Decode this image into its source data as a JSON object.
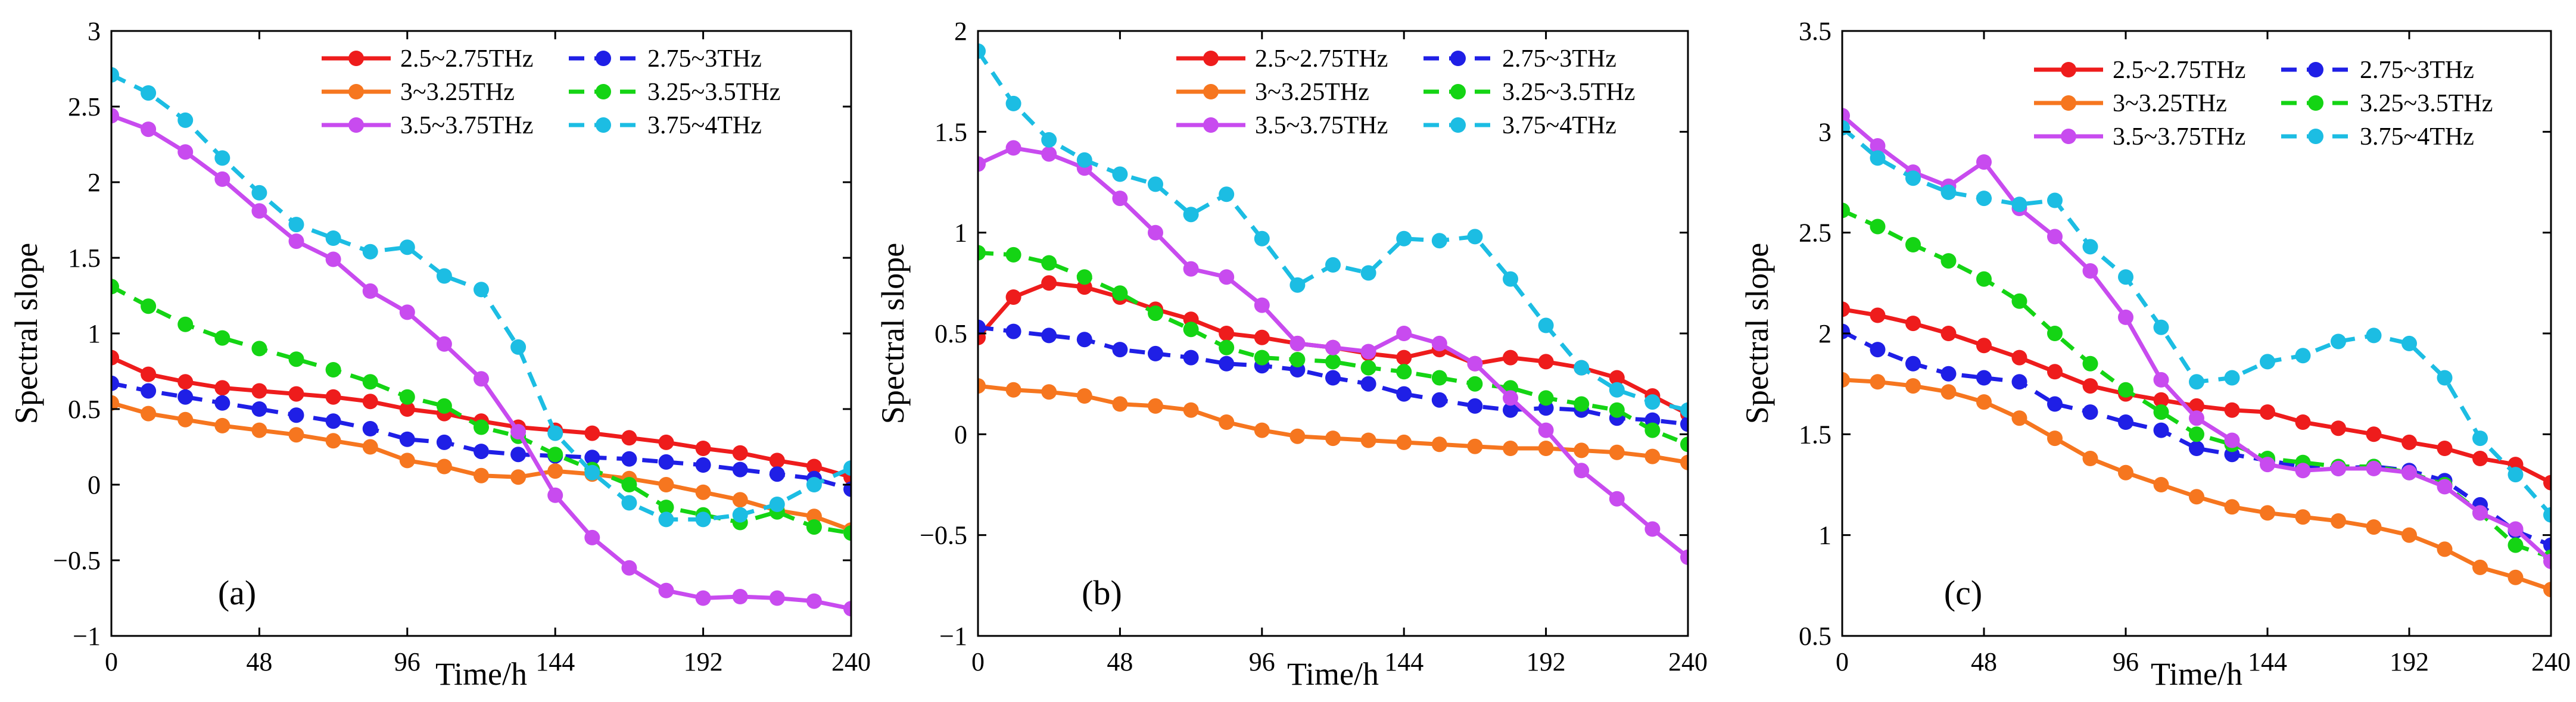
{
  "colors": {
    "2.5-2.75": "#ee1c1c",
    "2.75-3": "#1f1fe6",
    "3-3.25": "#f6761f",
    "3.25-3.5": "#14d414",
    "3.5-3.75": "#c84bef",
    "3.75-4": "#1cbde3"
  },
  "chart_data": [
    {
      "type": "line",
      "panel_label": "(a)",
      "xlabel": "Time/h",
      "ylabel": "Spectral slope",
      "xlim": [
        0,
        240
      ],
      "ylim": [
        -1,
        3
      ],
      "xticks": [
        0,
        48,
        96,
        144,
        192,
        240
      ],
      "xtick_labels": [
        "0",
        "48",
        "96",
        "144",
        "192",
        "240"
      ],
      "yticks": [
        -1,
        -0.5,
        0,
        0.5,
        1,
        1.5,
        2,
        2.5,
        3
      ],
      "ytick_labels": [
        "−1",
        "−0.5",
        "0",
        "0.5",
        "1",
        "1.5",
        "2",
        "2.5",
        "3"
      ],
      "legend_position": "top-right",
      "x": [
        0,
        12,
        24,
        36,
        48,
        60,
        72,
        84,
        96,
        108,
        120,
        132,
        144,
        156,
        168,
        180,
        192,
        204,
        216,
        228,
        240
      ],
      "series": [
        {
          "name": "2.5~2.75THz",
          "key": "2.5-2.75",
          "style": "solid",
          "values": [
            0.84,
            0.73,
            0.68,
            0.64,
            0.62,
            0.6,
            0.58,
            0.55,
            0.5,
            0.47,
            0.42,
            0.38,
            0.36,
            0.34,
            0.31,
            0.28,
            0.24,
            0.21,
            0.16,
            0.12,
            0.05
          ]
        },
        {
          "name": "2.75~3THz",
          "key": "2.75-3",
          "style": "dashed",
          "values": [
            0.67,
            0.62,
            0.58,
            0.54,
            0.5,
            0.46,
            0.42,
            0.37,
            0.3,
            0.28,
            0.22,
            0.2,
            0.19,
            0.18,
            0.17,
            0.15,
            0.13,
            0.1,
            0.07,
            0.04,
            -0.03
          ]
        },
        {
          "name": "3~3.25THz",
          "key": "3-3.25",
          "style": "solid",
          "values": [
            0.54,
            0.47,
            0.43,
            0.39,
            0.36,
            0.33,
            0.29,
            0.25,
            0.16,
            0.12,
            0.06,
            0.05,
            0.09,
            0.07,
            0.04,
            0.0,
            -0.05,
            -0.1,
            -0.17,
            -0.21,
            -0.3
          ]
        },
        {
          "name": "3.25~3.5THz",
          "key": "3.25-3.5",
          "style": "dashed",
          "values": [
            1.31,
            1.18,
            1.06,
            0.97,
            0.9,
            0.83,
            0.76,
            0.68,
            0.58,
            0.52,
            0.38,
            0.32,
            0.2,
            0.1,
            0.0,
            -0.15,
            -0.2,
            -0.25,
            -0.18,
            -0.28,
            -0.32
          ]
        },
        {
          "name": "3.5~3.75THz",
          "key": "3.5-3.75",
          "style": "solid",
          "values": [
            2.44,
            2.35,
            2.2,
            2.02,
            1.81,
            1.61,
            1.49,
            1.28,
            1.14,
            0.93,
            0.7,
            0.35,
            -0.07,
            -0.35,
            -0.55,
            -0.7,
            -0.75,
            -0.74,
            -0.75,
            -0.77,
            -0.82
          ]
        },
        {
          "name": "3.75~4THz",
          "key": "3.75-4",
          "style": "dashed",
          "values": [
            2.71,
            2.59,
            2.41,
            2.16,
            1.93,
            1.72,
            1.63,
            1.54,
            1.57,
            1.38,
            1.29,
            0.91,
            0.34,
            0.08,
            -0.12,
            -0.23,
            -0.23,
            -0.2,
            -0.13,
            0.0,
            0.11
          ]
        }
      ]
    },
    {
      "type": "line",
      "panel_label": "(b)",
      "xlabel": "Time/h",
      "ylabel": "Spectral slope",
      "xlim": [
        0,
        240
      ],
      "ylim": [
        -1,
        2
      ],
      "xticks": [
        0,
        48,
        96,
        144,
        192,
        240
      ],
      "xtick_labels": [
        "0",
        "48",
        "96",
        "144",
        "192",
        "240"
      ],
      "yticks": [
        -1,
        -0.5,
        0,
        0.5,
        1,
        1.5,
        2
      ],
      "ytick_labels": [
        "−1",
        "−0.5",
        "0",
        "0.5",
        "1",
        "1.5",
        "2"
      ],
      "legend_position": "top-right",
      "x": [
        0,
        12,
        24,
        36,
        48,
        60,
        72,
        84,
        96,
        108,
        120,
        132,
        144,
        156,
        168,
        180,
        192,
        204,
        216,
        228,
        240
      ],
      "series": [
        {
          "name": "2.5~2.75THz",
          "key": "2.5-2.75",
          "style": "solid",
          "values": [
            0.48,
            0.68,
            0.75,
            0.73,
            0.68,
            0.62,
            0.57,
            0.5,
            0.48,
            0.45,
            0.43,
            0.4,
            0.38,
            0.42,
            0.35,
            0.38,
            0.36,
            0.33,
            0.28,
            0.19,
            0.1
          ]
        },
        {
          "name": "2.75~3THz",
          "key": "2.75-3",
          "style": "dashed",
          "values": [
            0.53,
            0.51,
            0.49,
            0.47,
            0.42,
            0.4,
            0.38,
            0.35,
            0.34,
            0.32,
            0.28,
            0.25,
            0.2,
            0.17,
            0.14,
            0.12,
            0.13,
            0.12,
            0.08,
            0.07,
            0.05
          ]
        },
        {
          "name": "3~3.25THz",
          "key": "3-3.25",
          "style": "solid",
          "values": [
            0.24,
            0.22,
            0.21,
            0.19,
            0.15,
            0.14,
            0.12,
            0.06,
            0.02,
            -0.01,
            -0.02,
            -0.03,
            -0.04,
            -0.05,
            -0.06,
            -0.07,
            -0.07,
            -0.08,
            -0.09,
            -0.11,
            -0.14
          ]
        },
        {
          "name": "3.25~3.5THz",
          "key": "3.25-3.5",
          "style": "dashed",
          "values": [
            0.9,
            0.89,
            0.85,
            0.78,
            0.7,
            0.6,
            0.52,
            0.43,
            0.38,
            0.37,
            0.36,
            0.33,
            0.31,
            0.28,
            0.25,
            0.23,
            0.18,
            0.15,
            0.12,
            0.02,
            -0.05
          ]
        },
        {
          "name": "3.5~3.75THz",
          "key": "3.5-3.75",
          "style": "solid",
          "values": [
            1.34,
            1.42,
            1.39,
            1.32,
            1.17,
            1.0,
            0.82,
            0.78,
            0.64,
            0.45,
            0.43,
            0.41,
            0.5,
            0.45,
            0.35,
            0.18,
            0.02,
            -0.18,
            -0.32,
            -0.47,
            -0.61
          ]
        },
        {
          "name": "3.75~4THz",
          "key": "3.75-4",
          "style": "dashed",
          "values": [
            1.9,
            1.64,
            1.46,
            1.36,
            1.29,
            1.24,
            1.09,
            1.19,
            0.97,
            0.74,
            0.84,
            0.8,
            0.97,
            0.96,
            0.98,
            0.77,
            0.54,
            0.33,
            0.22,
            0.16,
            0.12
          ]
        }
      ]
    },
    {
      "type": "line",
      "panel_label": "(c)",
      "xlabel": "Time/h",
      "ylabel": "Spectral slope",
      "xlim": [
        0,
        240
      ],
      "ylim": [
        0.5,
        3.5
      ],
      "xticks": [
        0,
        48,
        96,
        144,
        192,
        240
      ],
      "xtick_labels": [
        "0",
        "48",
        "96",
        "144",
        "192",
        "240"
      ],
      "yticks": [
        0.5,
        1,
        1.5,
        2,
        2.5,
        3,
        3.5
      ],
      "ytick_labels": [
        "0.5",
        "1",
        "1.5",
        "2",
        "2.5",
        "3",
        "3.5"
      ],
      "legend_position": "top-right",
      "x": [
        0,
        12,
        24,
        36,
        48,
        60,
        72,
        84,
        96,
        108,
        120,
        132,
        144,
        156,
        168,
        180,
        192,
        204,
        216,
        228,
        240
      ],
      "series": [
        {
          "name": "2.5~2.75THz",
          "key": "2.5-2.75",
          "style": "solid",
          "values": [
            2.12,
            2.09,
            2.05,
            2.0,
            1.94,
            1.88,
            1.81,
            1.74,
            1.7,
            1.67,
            1.64,
            1.62,
            1.61,
            1.56,
            1.53,
            1.5,
            1.46,
            1.43,
            1.38,
            1.35,
            1.26
          ]
        },
        {
          "name": "2.75~3THz",
          "key": "2.75-3",
          "style": "dashed",
          "values": [
            2.01,
            1.92,
            1.85,
            1.8,
            1.78,
            1.76,
            1.65,
            1.61,
            1.56,
            1.52,
            1.43,
            1.4,
            1.37,
            1.34,
            1.33,
            1.34,
            1.32,
            1.27,
            1.15,
            1.02,
            0.95
          ]
        },
        {
          "name": "3~3.25THz",
          "key": "3-3.25",
          "style": "solid",
          "values": [
            1.77,
            1.76,
            1.74,
            1.71,
            1.66,
            1.58,
            1.48,
            1.38,
            1.31,
            1.25,
            1.19,
            1.14,
            1.11,
            1.09,
            1.07,
            1.04,
            1.0,
            0.93,
            0.84,
            0.79,
            0.73
          ]
        },
        {
          "name": "3.25~3.5THz",
          "key": "3.25-3.5",
          "style": "dashed",
          "values": [
            2.61,
            2.53,
            2.44,
            2.36,
            2.27,
            2.16,
            2.0,
            1.85,
            1.72,
            1.61,
            1.5,
            1.45,
            1.38,
            1.36,
            1.34,
            1.34,
            1.31,
            1.25,
            1.11,
            0.95,
            0.89
          ]
        },
        {
          "name": "3.5~3.75THz",
          "key": "3.5-3.75",
          "style": "solid",
          "values": [
            3.08,
            2.93,
            2.8,
            2.73,
            2.85,
            2.62,
            2.48,
            2.31,
            2.08,
            1.77,
            1.58,
            1.47,
            1.35,
            1.32,
            1.33,
            1.33,
            1.31,
            1.24,
            1.11,
            1.03,
            0.87
          ]
        },
        {
          "name": "3.75~4THz",
          "key": "3.75-4",
          "style": "dashed",
          "values": [
            3.02,
            2.87,
            2.77,
            2.7,
            2.67,
            2.64,
            2.66,
            2.43,
            2.28,
            2.03,
            1.76,
            1.78,
            1.86,
            1.89,
            1.96,
            1.99,
            1.95,
            1.78,
            1.48,
            1.3,
            1.1
          ]
        }
      ]
    }
  ]
}
